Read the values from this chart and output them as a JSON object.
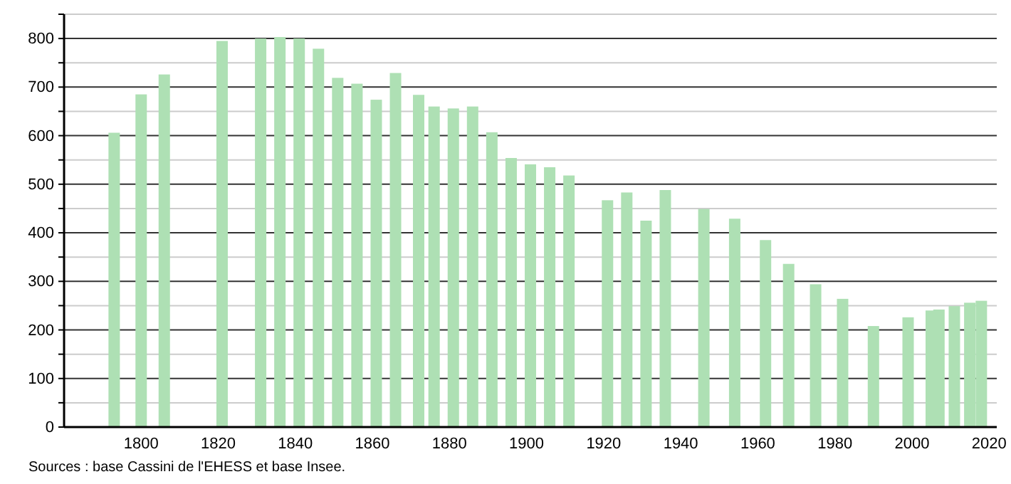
{
  "chart_data": {
    "type": "bar",
    "color": "#aee0b4",
    "x": [
      1793,
      1800,
      1806,
      1821,
      1831,
      1836,
      1841,
      1846,
      1851,
      1856,
      1861,
      1866,
      1872,
      1876,
      1881,
      1886,
      1891,
      1896,
      1901,
      1906,
      1911,
      1921,
      1926,
      1931,
      1936,
      1946,
      1954,
      1962,
      1968,
      1975,
      1982,
      1990,
      1999,
      2005,
      2007,
      2011,
      2015,
      2018
    ],
    "values": [
      606,
      685,
      726,
      795,
      800,
      803,
      800,
      779,
      719,
      707,
      674,
      729,
      684,
      660,
      656,
      660,
      607,
      554,
      541,
      535,
      518,
      467,
      483,
      425,
      488,
      449,
      429,
      385,
      336,
      294,
      264,
      208,
      226,
      240,
      242,
      249,
      256,
      260
    ],
    "xlim": [
      1780,
      2022
    ],
    "xticks": [
      1800,
      1820,
      1840,
      1860,
      1880,
      1900,
      1920,
      1940,
      1960,
      1980,
      2000,
      2020
    ],
    "ylim": [
      0,
      850
    ],
    "yticks": [
      0,
      {
        "value": 50,
        "label": null
      },
      100,
      {
        "value": 150,
        "label": null
      },
      200,
      {
        "value": 250,
        "label": null
      },
      300,
      {
        "value": 350,
        "label": null
      },
      400,
      {
        "value": 450,
        "label": null
      },
      500,
      {
        "value": 550,
        "label": null
      },
      600,
      {
        "value": 650,
        "label": null
      },
      700,
      {
        "value": 750,
        "label": null
      },
      800,
      {
        "value": 850,
        "label": null
      }
    ],
    "grid": true,
    "annotations": [
      "Sources : base Cassini de l'EHESS et base Insee."
    ]
  }
}
